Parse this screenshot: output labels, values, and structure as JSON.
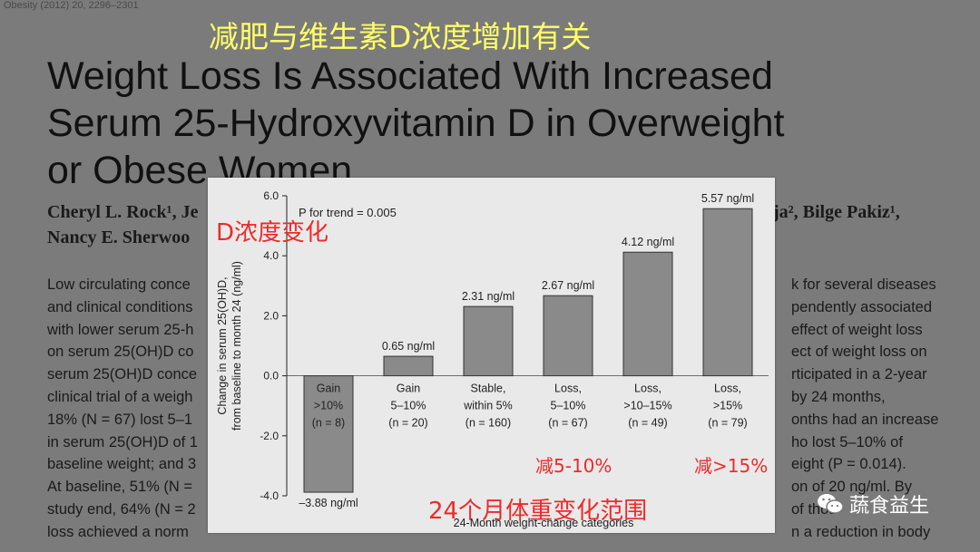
{
  "journal_ref": "Obesity (2012) 20, 2296–2301",
  "cn_title": "减肥与维生素D浓度增加有关",
  "paper_title": [
    "Weight Loss Is Associated With Increased",
    "Serum 25-Hydroxyvitamin D in Overweight",
    "or Obese Women"
  ],
  "authors": {
    "line1_left": "Cheryl L. Rock¹, Je",
    "line1_right": "ja², Bilge Pakiz¹,",
    "line2_left": "Nancy E. Sherwoo"
  },
  "abstract_lines": [
    {
      "left": "Low circulating conce",
      "right": "k for several diseases"
    },
    {
      "left": "and clinical conditions",
      "right": "pendently associated"
    },
    {
      "left": "with lower serum 25-h",
      "right": "effect of weight loss"
    },
    {
      "left": "on serum 25(OH)D co",
      "right": "ect of weight loss on"
    },
    {
      "left": "serum 25(OH)D conce",
      "right": "rticipated in a 2-year"
    },
    {
      "left": "clinical trial of a weigh",
      "right": "by 24 months,"
    },
    {
      "left": "18% (N = 67) lost 5–1",
      "right": "onths had an increase"
    },
    {
      "left": "in serum 25(OH)D of 1",
      "right": "ho lost 5–10% of"
    },
    {
      "left": "baseline weight; and 3",
      "right": "eight (P = 0.014)."
    },
    {
      "left": "At baseline, 51% (N =",
      "right": "on of 20 ng/ml. By"
    },
    {
      "left": "study end, 64% (N = 2",
      "right": "of thos"
    },
    {
      "left": "loss achieved a norm",
      "right": "n a reduction in body"
    }
  ],
  "chart_data": {
    "type": "bar",
    "title": "",
    "annotation": "P for trend = 0.005",
    "xlabel": "24-Month weight-change categories",
    "ylabel": [
      "Change in serum 25(OH)D,",
      "from baseline to month 24 (ng/ml)"
    ],
    "ylim": [
      -4.0,
      6.0
    ],
    "yticks": [
      "6.0",
      "4.0",
      "2.0",
      "0.0",
      "-2.0",
      "-4.0"
    ],
    "categories": [
      [
        "Gain",
        ">10%",
        "(n = 8)"
      ],
      [
        "Gain",
        "5–10%",
        "(n = 20)"
      ],
      [
        "Stable,",
        "within 5%",
        "(n = 160)"
      ],
      [
        "Loss,",
        "5–10%",
        "(n = 67)"
      ],
      [
        "Loss,",
        ">10–15%",
        "(n = 49)"
      ],
      [
        "Loss,",
        ">15%",
        "(n = 79)"
      ]
    ],
    "values": [
      -3.88,
      0.65,
      2.31,
      2.67,
      4.12,
      5.57
    ],
    "value_labels": [
      "–3.88 ng/ml",
      "0.65 ng/ml",
      "2.31 ng/ml",
      "2.67 ng/ml",
      "4.12 ng/ml",
      "5.57 ng/ml"
    ],
    "bar_color": "#8a8a8a",
    "grid": false
  },
  "overlays": {
    "d_change": "D浓度变化",
    "range_label": "24个月体重变化范围",
    "loss_5_10": "减5-10%",
    "loss_15": "减>15%"
  },
  "watermark": "蔬食益生",
  "colors": {
    "cn_title": "#ffff66",
    "overlay_red": "#ee2a2a"
  }
}
